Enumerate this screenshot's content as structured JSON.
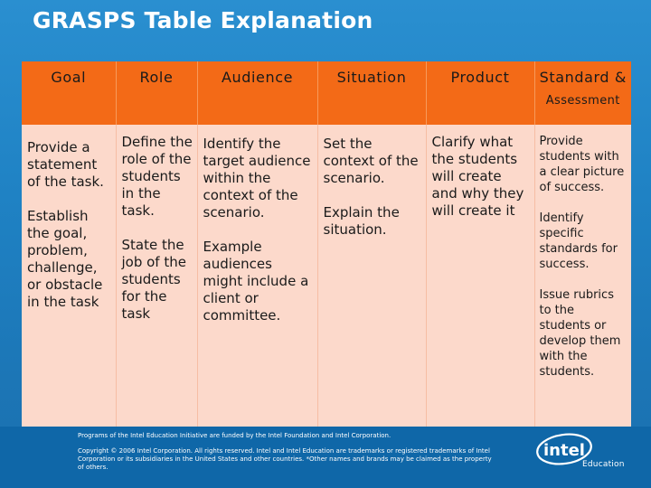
{
  "title": "GRASPS Table Explanation",
  "table": {
    "headers": {
      "goal": "Goal",
      "role": "Role",
      "audience": "Audience",
      "situation": "Situation",
      "product": "Product",
      "standard_main": "Standard &",
      "standard_sub": "Assessment"
    },
    "goal": [
      "Provide a statement of the task.",
      "Establish the goal, problem, challenge, or obstacle in the task"
    ],
    "role": [
      "Define the role of the students in the task.",
      "State the job of the students for the task"
    ],
    "audience": [
      "Identify the target audience within the context of the scenario.",
      "Example audiences might include a client or committee."
    ],
    "situation": [
      "Set the context of the scenario.",
      "Explain the situation."
    ],
    "product": [
      "Clarify what the students will create and why they will create it"
    ],
    "standard": [
      "Provide students with a clear picture of success.",
      "Identify specific standards for success.",
      "Issue rubrics to the students or develop them with the students."
    ]
  },
  "footer": {
    "line1": "Programs of the Intel Education Initiative are funded by the Intel Foundation and Intel Corporation.",
    "line2": "Copyright © 2006 Intel Corporation. All rights reserved. Intel and Intel Education are trademarks or registered trademarks of Intel Corporation or its subsidiaries in the United States and other countries. *Other names and brands may be claimed as the property of others."
  },
  "logo": {
    "wordmark": "intel",
    "subtitle": "Education"
  },
  "colors": {
    "background": "#1f82c4",
    "header": "#f36a17",
    "cell": "#fcd9cb",
    "footer": "#0f67a8"
  }
}
